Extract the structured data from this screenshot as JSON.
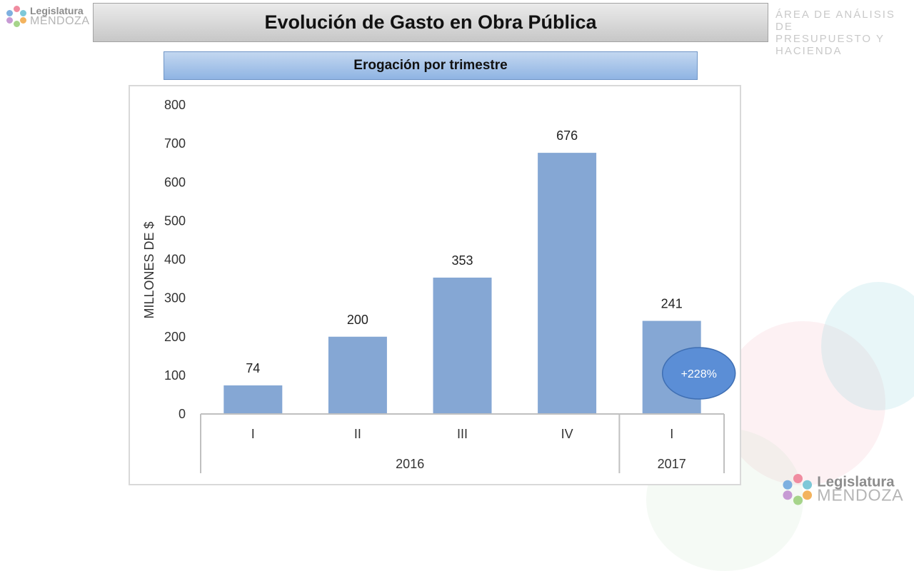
{
  "header": {
    "title": "Evolución de Gasto en Obra Pública",
    "subtitle": "Erogación por trimestre",
    "department_line1": "ÁREA DE ANÁLISIS DE",
    "department_line2": "PRESUPUESTO Y HACIENDA"
  },
  "logo": {
    "line1": "Legislatura",
    "line2": "MENDOZA"
  },
  "chart_data": {
    "type": "bar",
    "categories": [
      "I",
      "II",
      "III",
      "IV",
      "I"
    ],
    "groups": [
      {
        "label": "2016",
        "count": 4
      },
      {
        "label": "2017",
        "count": 1
      }
    ],
    "values": [
      74,
      200,
      353,
      676,
      241
    ],
    "data_labels": [
      "74",
      "200",
      "353",
      "676",
      "241"
    ],
    "ylabel": "MILLONES DE $",
    "ylim": [
      0,
      800
    ],
    "yticks": [
      0,
      100,
      200,
      300,
      400,
      500,
      600,
      700,
      800
    ],
    "grid": false,
    "bar_color": "#85a7d4",
    "annotation": {
      "text": "+228%",
      "color": "#5b8ed6"
    }
  }
}
